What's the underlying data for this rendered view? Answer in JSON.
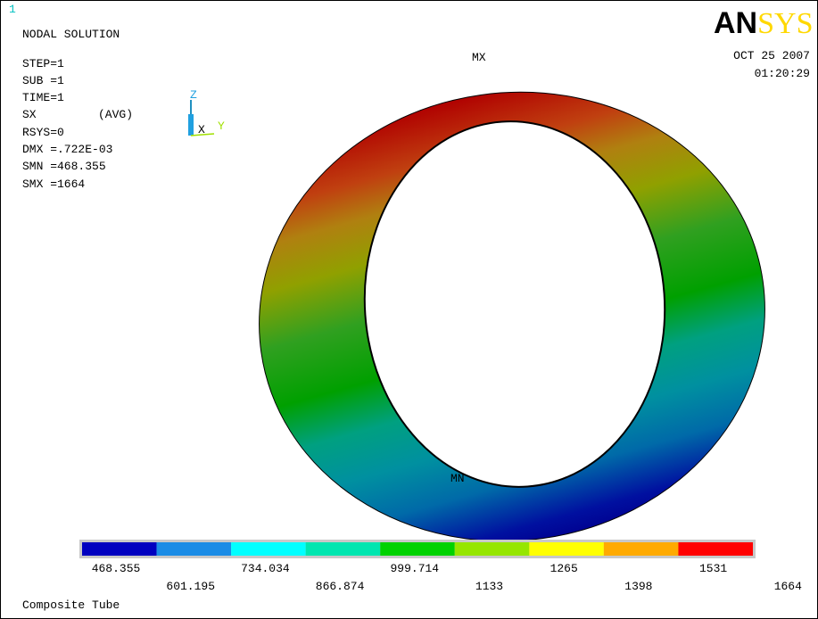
{
  "window_number": "1",
  "info": [
    "NODAL SOLUTION",
    "STEP=1",
    "SUB =1",
    "TIME=1",
    "SX",
    "(AVG)",
    "RSYS=0",
    "DMX =.722E-03",
    "SMN =468.355",
    "SMX =1664"
  ],
  "logo": {
    "bold": "AN",
    "light": "SYS"
  },
  "date": "OCT 25 2007",
  "time": "01:20:29",
  "triad": {
    "z": "Z",
    "x": "X",
    "y": "Y"
  },
  "markers": {
    "max": "MX",
    "min": "MN"
  },
  "legend": {
    "colors": [
      "#0000c0",
      "#1a8ce6",
      "#00ffff",
      "#00e6b0",
      "#00d200",
      "#96e600",
      "#ffff00",
      "#ffaa00",
      "#ff0000"
    ],
    "labels": [
      "468.355",
      "601.195",
      "734.034",
      "866.874",
      "999.714",
      "1133",
      "1265",
      "1398",
      "1531",
      "1664"
    ]
  },
  "footer": "Composite Tube"
}
